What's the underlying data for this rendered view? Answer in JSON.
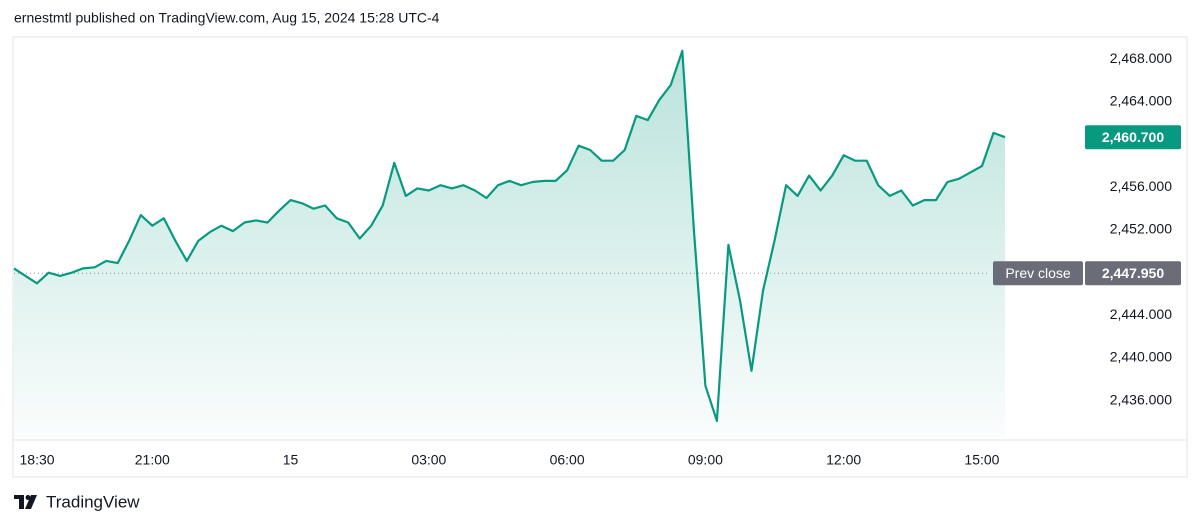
{
  "chart_data": {
    "type": "area",
    "title": "ernestmtl published on TradingView.com, Aug 15, 2024 15:28 UTC-4",
    "source": "TradingView",
    "color": "#089981",
    "categories": [
      null,
      null,
      "18:30",
      null,
      null,
      null,
      null,
      null,
      null,
      null,
      null,
      null,
      "21:00",
      null,
      null,
      null,
      null,
      null,
      null,
      null,
      null,
      null,
      null,
      null,
      "15",
      null,
      null,
      null,
      null,
      null,
      null,
      null,
      null,
      null,
      null,
      null,
      "03:00",
      null,
      null,
      null,
      null,
      null,
      null,
      null,
      null,
      null,
      null,
      null,
      "06:00",
      null,
      null,
      null,
      null,
      null,
      null,
      null,
      null,
      null,
      null,
      null,
      "09:00",
      null,
      null,
      null,
      null,
      null,
      null,
      null,
      null,
      null,
      null,
      null,
      "12:00",
      null,
      null,
      null,
      null,
      null,
      null,
      null,
      null,
      null,
      null,
      null,
      "15:00",
      null,
      null
    ],
    "values": [
      2448.4,
      2447.7,
      2447.0,
      2448.0,
      2447.7,
      2448.0,
      2448.4,
      2448.5,
      2449.1,
      2448.9,
      2451.0,
      2453.4,
      2452.4,
      2453.1,
      2451.0,
      2449.1,
      2451.0,
      2451.8,
      2452.4,
      2451.9,
      2452.7,
      2452.9,
      2452.7,
      2453.8,
      2454.8,
      2454.5,
      2454.0,
      2454.3,
      2453.1,
      2452.7,
      2451.2,
      2452.4,
      2454.3,
      2458.3,
      2455.2,
      2455.9,
      2455.7,
      2456.2,
      2455.9,
      2456.2,
      2455.7,
      2455.0,
      2456.2,
      2456.6,
      2456.2,
      2456.5,
      2456.6,
      2456.6,
      2457.6,
      2459.9,
      2459.5,
      2458.5,
      2458.5,
      2459.5,
      2462.7,
      2462.3,
      2464.2,
      2465.6,
      2468.8,
      2452.0,
      2437.4,
      2434.1,
      2450.6,
      2445.4,
      2438.8,
      2446.3,
      2451.0,
      2456.2,
      2455.2,
      2457.1,
      2455.7,
      2457.1,
      2459.0,
      2458.5,
      2458.5,
      2456.2,
      2455.2,
      2455.7,
      2454.3,
      2454.8,
      2454.8,
      2456.5,
      2456.8,
      2457.4,
      2458.0,
      2461.1,
      2460.7
    ],
    "ylim": [
      2432.5,
      2470
    ],
    "yticks": [
      {
        "value": 2436,
        "label": "2,436.000"
      },
      {
        "value": 2440,
        "label": "2,440.000"
      },
      {
        "value": 2444,
        "label": "2,444.000"
      },
      {
        "value": 2452,
        "label": "2,452.000"
      },
      {
        "value": 2456,
        "label": "2,456.000"
      },
      {
        "value": 2464,
        "label": "2,464.000"
      },
      {
        "value": 2468,
        "label": "2,468.000"
      }
    ],
    "last_label": {
      "value": 2460.7,
      "label": "2,460.700"
    },
    "prev_close": {
      "label": "Prev close",
      "value": 2447.95,
      "value_label": "2,447.950"
    },
    "grid": false
  }
}
